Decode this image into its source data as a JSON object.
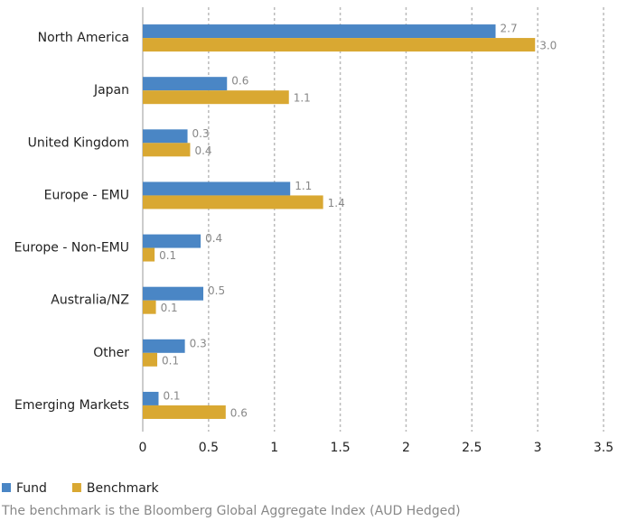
{
  "chart_data": {
    "type": "hbar",
    "categories": [
      "North America",
      "Japan",
      "United Kingdom",
      "Europe - EMU",
      "Europe - Non-EMU",
      "Australia/NZ",
      "Other",
      "Emerging Markets"
    ],
    "series": [
      {
        "name": "Fund",
        "color": "#4a86c5",
        "values": [
          2.68,
          0.64,
          0.34,
          1.12,
          0.44,
          0.46,
          0.32,
          0.12
        ],
        "value_labels": [
          "2.7",
          "0.6",
          "0.3",
          "1.1",
          "0.4",
          "0.5",
          "0.3",
          "0.1"
        ]
      },
      {
        "name": "Benchmark",
        "color": "#d9a832",
        "values": [
          2.98,
          1.11,
          0.36,
          1.37,
          0.09,
          0.1,
          0.11,
          0.63
        ],
        "value_labels": [
          "3.0",
          "1.1",
          "0.4",
          "1.4",
          "0.1",
          "0.1",
          "0.1",
          "0.6"
        ]
      }
    ],
    "xlim": [
      0,
      3.5
    ],
    "xticks": [
      0,
      0.5,
      1,
      1.5,
      2,
      2.5,
      3,
      3.5
    ],
    "grid": true,
    "footnote": "The benchmark is the Bloomberg Global Aggregate Index (AUD Hedged)"
  }
}
